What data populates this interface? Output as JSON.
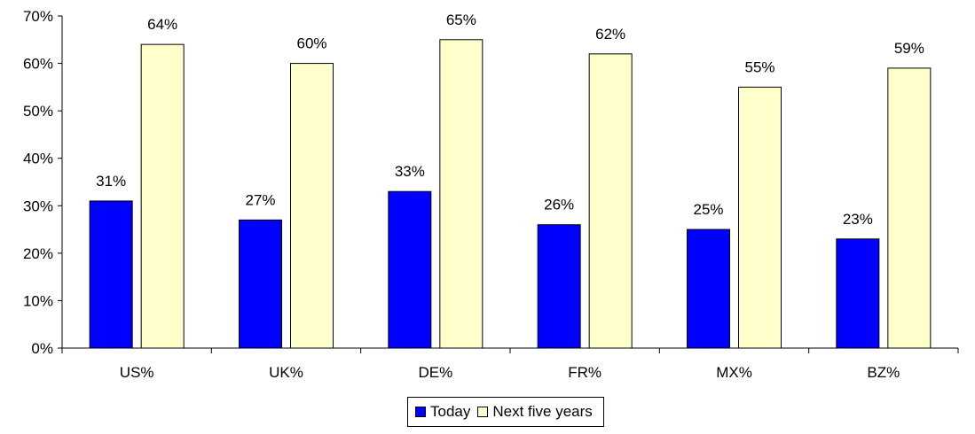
{
  "chart_data": {
    "type": "bar",
    "categories": [
      "US%",
      "UK%",
      "DE%",
      "FR%",
      "MX%",
      "BZ%"
    ],
    "series": [
      {
        "name": "Today",
        "values": [
          0.31,
          0.27,
          0.33,
          0.26,
          0.25,
          0.23
        ],
        "labels": [
          "31%",
          "27%",
          "33%",
          "26%",
          "25%",
          "23%"
        ],
        "color": "#0000ff"
      },
      {
        "name": "Next five years",
        "values": [
          0.64,
          0.6,
          0.65,
          0.62,
          0.55,
          0.59
        ],
        "labels": [
          "64%",
          "60%",
          "65%",
          "62%",
          "55%",
          "59%"
        ],
        "color": "#ffffcc"
      }
    ],
    "ylim": [
      0,
      0.7
    ],
    "yticks": [
      "0%",
      "10%",
      "20%",
      "30%",
      "40%",
      "50%",
      "60%",
      "70%"
    ],
    "title": "",
    "xlabel": "",
    "ylabel": "",
    "grid": false,
    "legend_position": "bottom"
  }
}
